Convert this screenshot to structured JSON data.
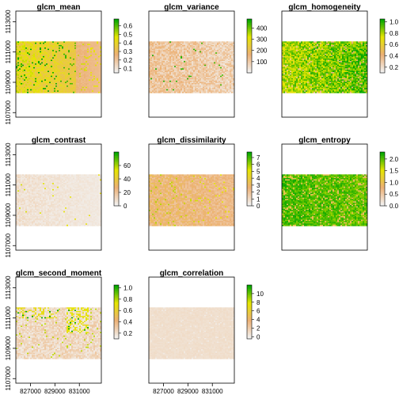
{
  "figure": {
    "layout": "3x3 panel grid of raster maps, each with a vertical colour key",
    "x_ticks": [
      "827000",
      "829000",
      "831000"
    ],
    "y_ticks": [
      "1107000",
      "1109000",
      "1111000",
      "1113000"
    ],
    "extent": {
      "x": [
        825800,
        832800
      ],
      "y": [
        1106700,
        1113700
      ]
    },
    "raster_extent": {
      "x": [
        825800,
        832800
      ],
      "y": [
        1108300,
        1111700
      ]
    },
    "palette": {
      "low": "#f2f2f2",
      "mid1": "#ecb176",
      "mid2": "#e6e600",
      "high": "#00a600"
    },
    "legend_stroke": "#000000"
  },
  "chart_data": [
    {
      "type": "heatmap",
      "title": "glcm_mean",
      "legend_ticks": [
        "0.1",
        "0.2",
        "0.3",
        "0.4",
        "0.5",
        "0.6"
      ],
      "legend_values": [
        0.1,
        0.2,
        0.3,
        0.4,
        0.5,
        0.6
      ],
      "legend_range": [
        0.05,
        0.68
      ],
      "style": "yellow",
      "show_x_ticks": false,
      "show_y_ticks": true
    },
    {
      "type": "heatmap",
      "title": "glcm_variance",
      "legend_ticks": [
        "100",
        "200",
        "300",
        "400"
      ],
      "legend_values": [
        100,
        200,
        300,
        400
      ],
      "legend_range": [
        0,
        480
      ],
      "style": "tan",
      "show_x_ticks": false,
      "show_y_ticks": false
    },
    {
      "type": "heatmap",
      "title": "glcm_homogeneity",
      "legend_ticks": [
        "0.2",
        "0.4",
        "0.6",
        "0.8",
        "1.0"
      ],
      "legend_values": [
        0.2,
        0.4,
        0.6,
        0.8,
        1.0
      ],
      "legend_range": [
        0.1,
        1.05
      ],
      "style": "greenyellow",
      "show_x_ticks": false,
      "show_y_ticks": false
    },
    {
      "type": "heatmap",
      "title": "glcm_contrast",
      "legend_ticks": [
        "0",
        "20",
        "40",
        "60"
      ],
      "legend_values": [
        0,
        20,
        40,
        60
      ],
      "legend_range": [
        0,
        80
      ],
      "style": "pale",
      "show_x_ticks": false,
      "show_y_ticks": true
    },
    {
      "type": "heatmap",
      "title": "glcm_dissimilarity",
      "legend_ticks": [
        "0",
        "1",
        "2",
        "3",
        "4",
        "5",
        "6",
        "7"
      ],
      "legend_values": [
        0,
        1,
        2,
        3,
        4,
        5,
        6,
        7
      ],
      "legend_range": [
        0,
        7.8
      ],
      "style": "tanyellow",
      "show_x_ticks": false,
      "show_y_ticks": false
    },
    {
      "type": "heatmap",
      "title": "glcm_entropy",
      "legend_ticks": [
        "0.0",
        "0.5",
        "1.0",
        "1.5",
        "2.0"
      ],
      "legend_values": [
        0,
        0.5,
        1.0,
        1.5,
        2.0
      ],
      "legend_range": [
        0,
        2.3
      ],
      "style": "green",
      "show_x_ticks": false,
      "show_y_ticks": false
    },
    {
      "type": "heatmap",
      "title": "glcm_second_moment",
      "legend_ticks": [
        "0.2",
        "0.4",
        "0.6",
        "0.8",
        "1.0"
      ],
      "legend_values": [
        0.2,
        0.4,
        0.6,
        0.8,
        1.0
      ],
      "legend_range": [
        0.1,
        1.05
      ],
      "style": "paleyellow",
      "show_x_ticks": true,
      "show_y_ticks": true
    },
    {
      "type": "heatmap",
      "title": "glcm_correlation",
      "legend_ticks": [
        "0",
        "2",
        "4",
        "6",
        "8",
        "10"
      ],
      "legend_values": [
        0,
        2,
        4,
        6,
        8,
        10
      ],
      "legend_range": [
        -0.5,
        12
      ],
      "style": "pink",
      "show_x_ticks": true,
      "show_y_ticks": false
    }
  ]
}
